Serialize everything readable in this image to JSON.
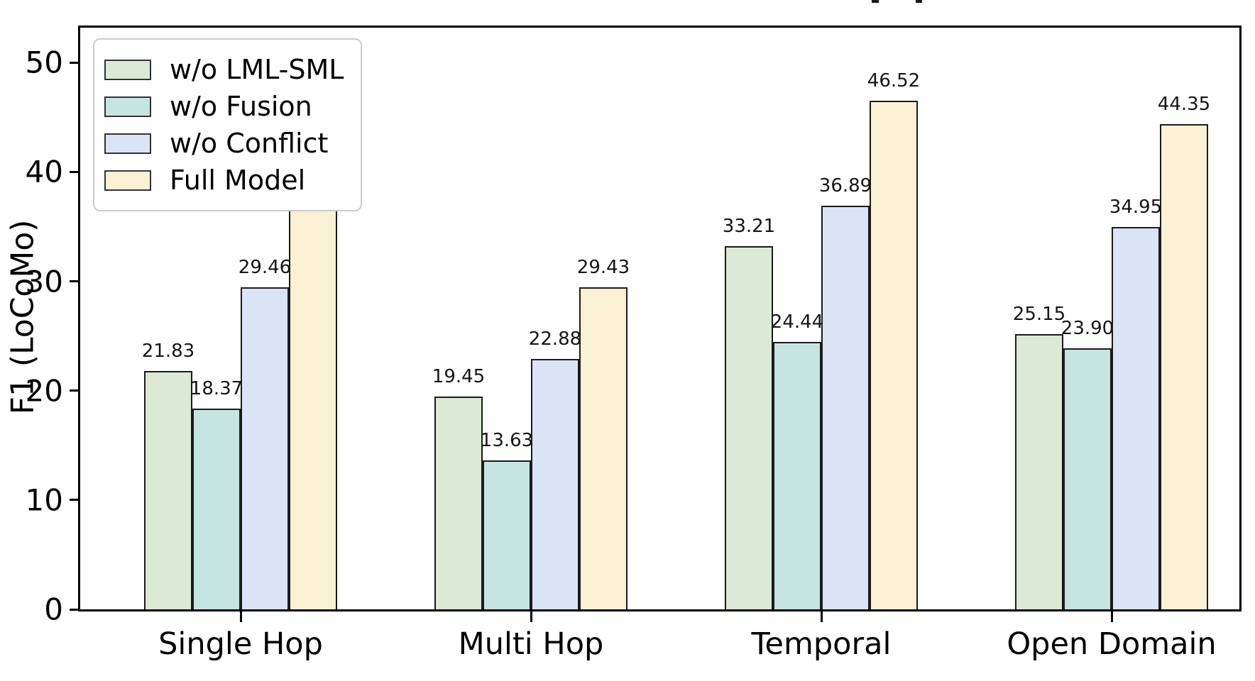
{
  "chart_data": {
    "type": "bar",
    "title": "",
    "ylabel": "F1 (LoCoMo)",
    "xlabel": "",
    "categories": [
      "Single Hop",
      "Multi Hop",
      "Temporal",
      "Open Domain"
    ],
    "series": [
      {
        "name": "w/o LML-SML",
        "color": "#dbe9d5",
        "values": [
          21.83,
          19.45,
          33.21,
          25.15
        ],
        "labels": [
          "21.83",
          "19.45",
          "33.21",
          "25.15"
        ]
      },
      {
        "name": "w/o Fusion",
        "color": "#c6e5e2",
        "values": [
          18.37,
          13.63,
          24.44,
          23.9
        ],
        "labels": [
          "18.37",
          "13.63",
          "24.44",
          "23.90"
        ]
      },
      {
        "name": "w/o Conflict",
        "color": "#dbe4f7",
        "values": [
          29.46,
          22.88,
          36.89,
          34.95
        ],
        "labels": [
          "29.46",
          "22.88",
          "36.89",
          "34.95"
        ]
      },
      {
        "name": "Full Model",
        "color": "#faf1d4",
        "values": [
          37.61,
          29.43,
          46.52,
          44.35
        ],
        "labels": [
          "37.61",
          "29.43",
          "46.52",
          "44.35"
        ]
      }
    ],
    "yticks": [
      0,
      10,
      20,
      30,
      40,
      50
    ],
    "ylim": [
      0,
      53.2
    ],
    "grid": false,
    "legend_position": "upper-left",
    "bar_edge_color": "#1b1b1b",
    "axis_color": "#000000"
  }
}
